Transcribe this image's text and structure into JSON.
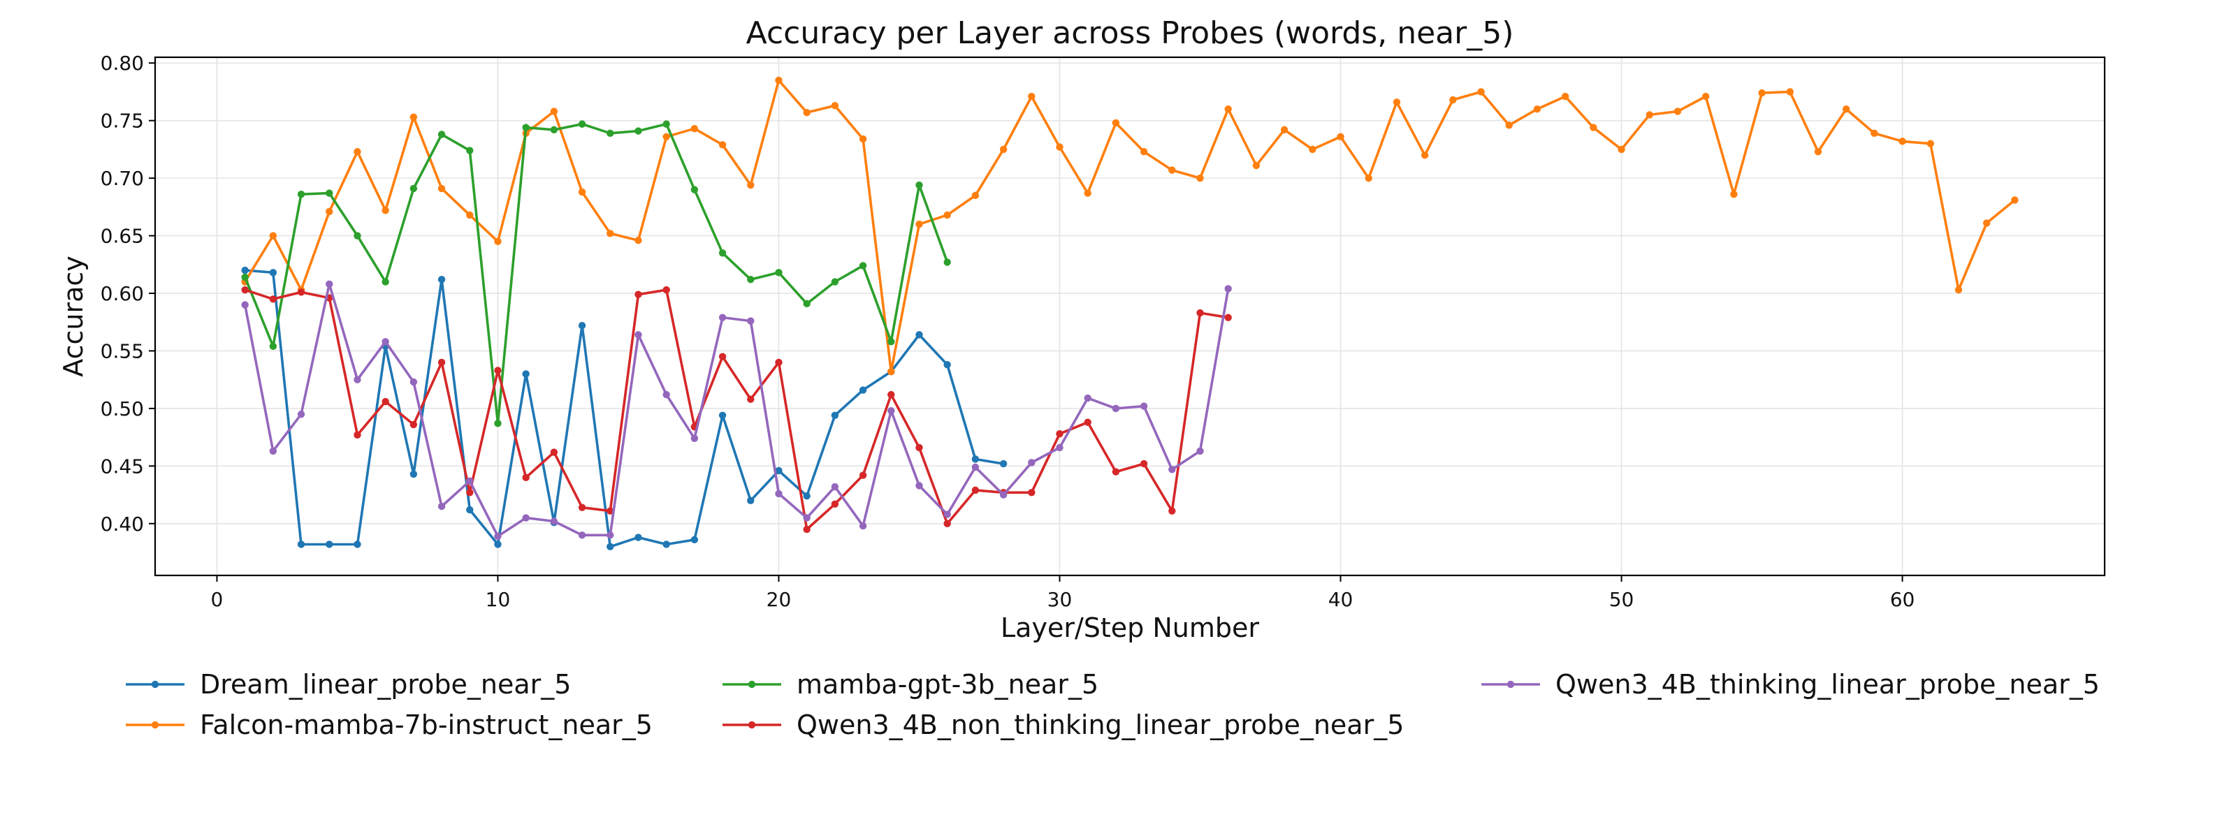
{
  "chart_data": {
    "type": "line",
    "title": "Accuracy per Layer across Probes (words, near_5)",
    "xlabel": "Layer/Step Number",
    "ylabel": "Accuracy",
    "xlim": [
      -2.2,
      67.2
    ],
    "ylim": [
      0.355,
      0.805
    ],
    "xticks": [
      0,
      10,
      20,
      30,
      40,
      50,
      60
    ],
    "yticks": [
      0.4,
      0.45,
      0.5,
      0.55,
      0.6,
      0.65,
      0.7,
      0.75,
      0.8
    ],
    "grid": true,
    "legend_position": "bottom",
    "series": [
      {
        "name": "Dream_linear_probe_near_5",
        "color": "#1f77b4",
        "x": [
          1,
          2,
          3,
          4,
          5,
          6,
          7,
          8,
          9,
          10,
          11,
          12,
          13,
          14,
          15,
          16,
          17,
          18,
          19,
          20,
          21,
          22,
          23,
          24,
          25,
          26,
          27,
          28
        ],
        "y": [
          0.62,
          0.618,
          0.382,
          0.382,
          0.382,
          0.554,
          0.443,
          0.612,
          0.412,
          0.382,
          0.53,
          0.401,
          0.572,
          0.38,
          0.388,
          0.382,
          0.386,
          0.494,
          0.42,
          0.446,
          0.424,
          0.494,
          0.516,
          0.532,
          0.564,
          0.538,
          0.456,
          0.452
        ]
      },
      {
        "name": "Falcon-mamba-7b-instruct_near_5",
        "color": "#ff7f0e",
        "x": [
          1,
          2,
          3,
          4,
          5,
          6,
          7,
          8,
          9,
          10,
          11,
          12,
          13,
          14,
          15,
          16,
          17,
          18,
          19,
          20,
          21,
          22,
          23,
          24,
          25,
          26,
          27,
          28,
          29,
          30,
          31,
          32,
          33,
          34,
          35,
          36,
          37,
          38,
          39,
          40,
          41,
          42,
          43,
          44,
          45,
          46,
          47,
          48,
          49,
          50,
          51,
          52,
          53,
          54,
          55,
          56,
          57,
          58,
          59,
          60,
          61,
          62,
          63,
          64
        ],
        "y": [
          0.61,
          0.65,
          0.603,
          0.671,
          0.723,
          0.672,
          0.753,
          0.691,
          0.668,
          0.645,
          0.739,
          0.758,
          0.688,
          0.652,
          0.646,
          0.736,
          0.743,
          0.729,
          0.694,
          0.785,
          0.757,
          0.763,
          0.734,
          0.532,
          0.66,
          0.668,
          0.685,
          0.725,
          0.771,
          0.727,
          0.687,
          0.748,
          0.723,
          0.707,
          0.7,
          0.76,
          0.711,
          0.742,
          0.725,
          0.736,
          0.7,
          0.766,
          0.72,
          0.768,
          0.775,
          0.746,
          0.76,
          0.771,
          0.744,
          0.725,
          0.755,
          0.758,
          0.771,
          0.686,
          0.774,
          0.775,
          0.723,
          0.76,
          0.739,
          0.732,
          0.73,
          0.603,
          0.661,
          0.681
        ]
      },
      {
        "name": "mamba-gpt-3b_near_5",
        "color": "#2ca02c",
        "x": [
          1,
          2,
          3,
          4,
          5,
          6,
          7,
          8,
          9,
          10,
          11,
          12,
          13,
          14,
          15,
          16,
          17,
          18,
          19,
          20,
          21,
          22,
          23,
          24,
          25,
          26
        ],
        "y": [
          0.614,
          0.554,
          0.686,
          0.687,
          0.65,
          0.61,
          0.691,
          0.738,
          0.724,
          0.487,
          0.744,
          0.742,
          0.747,
          0.739,
          0.741,
          0.747,
          0.69,
          0.635,
          0.612,
          0.618,
          0.591,
          0.61,
          0.624,
          0.558,
          0.694,
          0.627
        ]
      },
      {
        "name": "Qwen3_4B_non_thinking_linear_probe_near_5",
        "color": "#d62728",
        "x": [
          1,
          2,
          3,
          4,
          5,
          6,
          7,
          8,
          9,
          10,
          11,
          12,
          13,
          14,
          15,
          16,
          17,
          18,
          19,
          20,
          21,
          22,
          23,
          24,
          25,
          26,
          27,
          28,
          29,
          30,
          31,
          32,
          33,
          34,
          35,
          36
        ],
        "y": [
          0.603,
          0.595,
          0.601,
          0.596,
          0.477,
          0.506,
          0.486,
          0.54,
          0.427,
          0.533,
          0.44,
          0.462,
          0.414,
          0.411,
          0.599,
          0.603,
          0.484,
          0.545,
          0.508,
          0.54,
          0.395,
          0.417,
          0.442,
          0.512,
          0.466,
          0.4,
          0.429,
          0.427,
          0.427,
          0.478,
          0.488,
          0.445,
          0.452,
          0.411,
          0.583,
          0.579
        ]
      },
      {
        "name": "Qwen3_4B_thinking_linear_probe_near_5",
        "color": "#9467bd",
        "x": [
          1,
          2,
          3,
          4,
          5,
          6,
          7,
          8,
          9,
          10,
          11,
          12,
          13,
          14,
          15,
          16,
          17,
          18,
          19,
          20,
          21,
          22,
          23,
          24,
          25,
          26,
          27,
          28,
          29,
          30,
          31,
          32,
          33,
          34,
          35,
          36
        ],
        "y": [
          0.59,
          0.463,
          0.495,
          0.608,
          0.525,
          0.558,
          0.523,
          0.415,
          0.437,
          0.389,
          0.405,
          0.402,
          0.39,
          0.39,
          0.564,
          0.512,
          0.474,
          0.579,
          0.576,
          0.426,
          0.405,
          0.432,
          0.398,
          0.498,
          0.433,
          0.408,
          0.449,
          0.425,
          0.453,
          0.466,
          0.509,
          0.5,
          0.502,
          0.447,
          0.463,
          0.604
        ]
      }
    ]
  }
}
